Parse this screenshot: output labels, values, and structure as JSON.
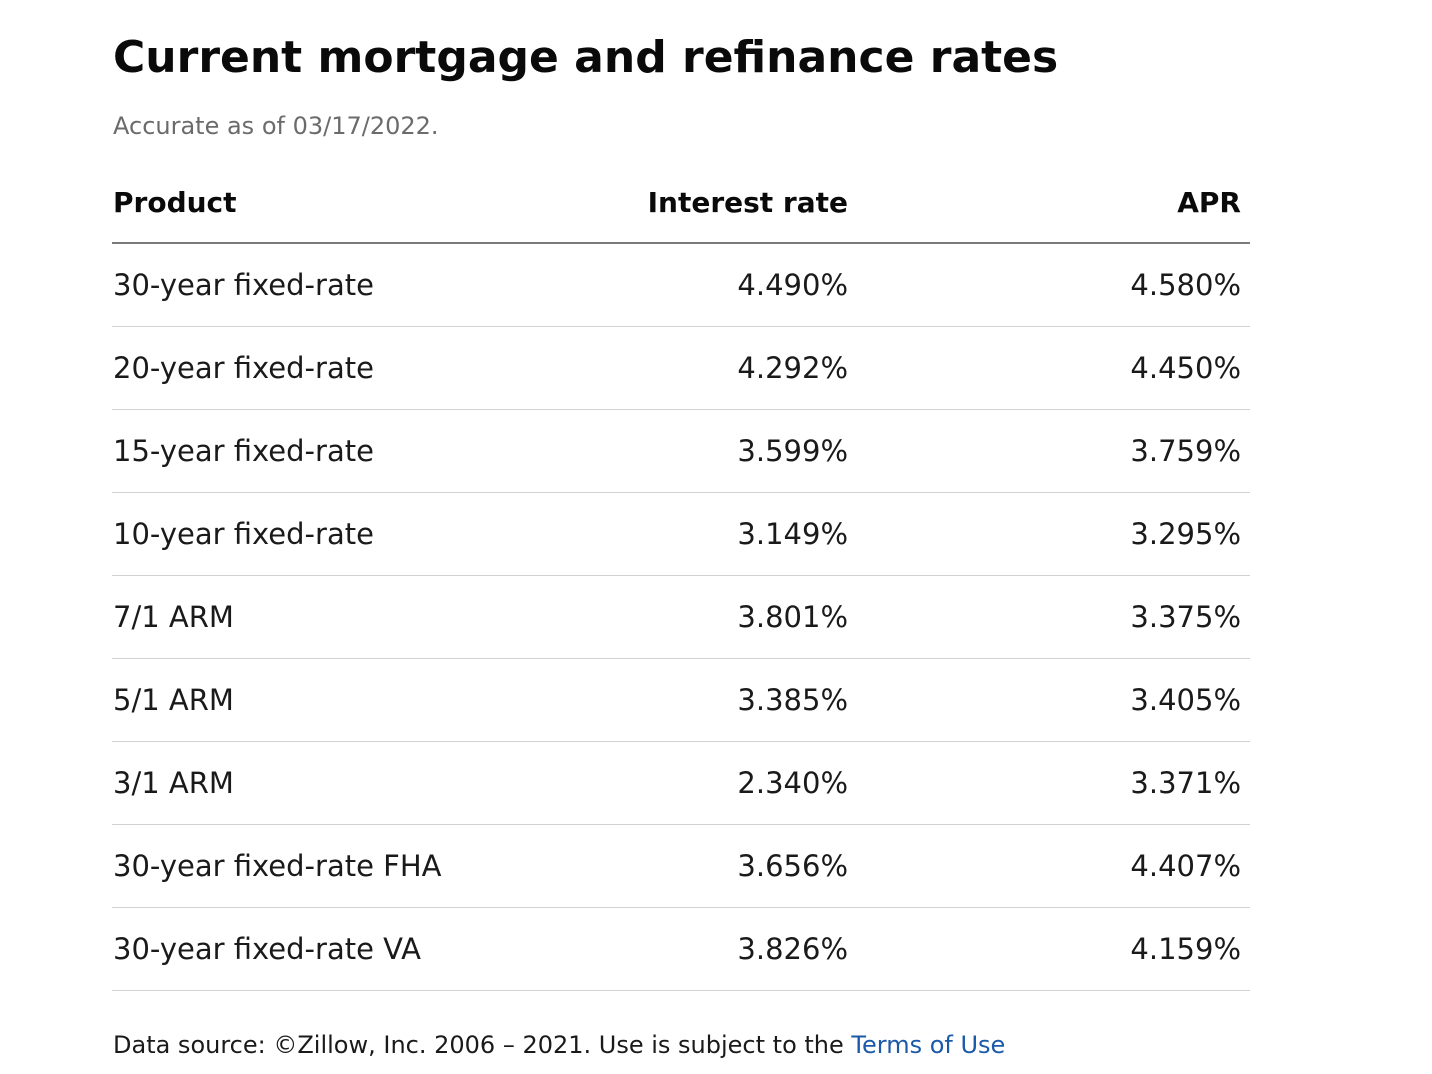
{
  "header": {
    "title": "Current mortgage and refinance rates",
    "subtitle": "Accurate as of 03/17/2022."
  },
  "table": {
    "columns": [
      "Product",
      "Interest rate",
      "APR"
    ],
    "rows": [
      {
        "product": "30-year fixed-rate",
        "interest_rate": "4.490%",
        "apr": "4.580%"
      },
      {
        "product": "20-year fixed-rate",
        "interest_rate": "4.292%",
        "apr": "4.450%"
      },
      {
        "product": "15-year fixed-rate",
        "interest_rate": "3.599%",
        "apr": "3.759%"
      },
      {
        "product": "10-year fixed-rate",
        "interest_rate": "3.149%",
        "apr": "3.295%"
      },
      {
        "product": "7/1 ARM",
        "interest_rate": "3.801%",
        "apr": "3.375%"
      },
      {
        "product": "5/1 ARM",
        "interest_rate": "3.385%",
        "apr": "3.405%"
      },
      {
        "product": "3/1 ARM",
        "interest_rate": "2.340%",
        "apr": "3.371%"
      },
      {
        "product": "30-year fixed-rate FHA",
        "interest_rate": "3.656%",
        "apr": "4.407%"
      },
      {
        "product": "30-year fixed-rate VA",
        "interest_rate": "3.826%",
        "apr": "4.159%"
      }
    ]
  },
  "footer": {
    "source_text": "Data source: ©Zillow, Inc. 2006 – 2021. Use is subject to the ",
    "link_label": "Terms of Use"
  },
  "colors": {
    "text": "#1a1a1a",
    "muted": "#6b6b6b",
    "link": "#1a5aa8",
    "header_rule": "#7a7a7a",
    "row_rule": "#d2d2d2"
  }
}
